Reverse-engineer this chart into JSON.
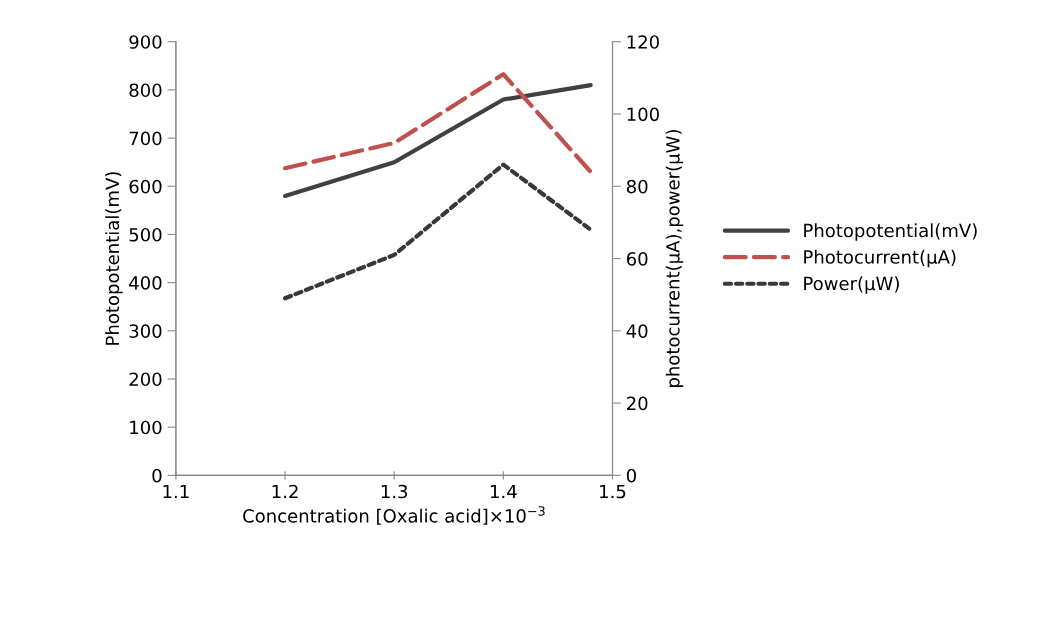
{
  "chart_data": {
    "type": "line",
    "xlabel": "Concentration [Oxalic acid]×10$^{−3}$",
    "ylabel": "Photopotential(mV)",
    "y2label": "photocurrent(µA),power(µW)",
    "x": [
      1.2,
      1.3,
      1.4,
      1.48
    ],
    "series": [
      {
        "name": "Photopotential(mV)",
        "color": "#404040",
        "line_style": "solid",
        "values": [
          580,
          650,
          780,
          810
        ]
      },
      {
        "name": "Photocurrent(µA)",
        "color": "#c0504d",
        "line_style": "dashed",
        "axis": "y2",
        "values": [
          85,
          92,
          111,
          84
        ]
      },
      {
        "name": "Power(µW)",
        "color": "#383838",
        "line_style": "dotted",
        "axis": "y2",
        "values": [
          49,
          61,
          86,
          68
        ]
      }
    ],
    "xlim": [
      1.1,
      1.5
    ],
    "xticks": [
      1.1,
      1.2,
      1.3,
      1.4,
      1.5
    ],
    "ylim": [
      0,
      900
    ],
    "yticks": [
      0,
      100,
      200,
      300,
      400,
      500,
      600,
      700,
      800,
      900
    ],
    "y2lim": [
      0,
      120
    ],
    "y2ticks": [
      0,
      20,
      40,
      60,
      80,
      100,
      120
    ],
    "grid": false,
    "legend": "right",
    "marker": "none"
  }
}
